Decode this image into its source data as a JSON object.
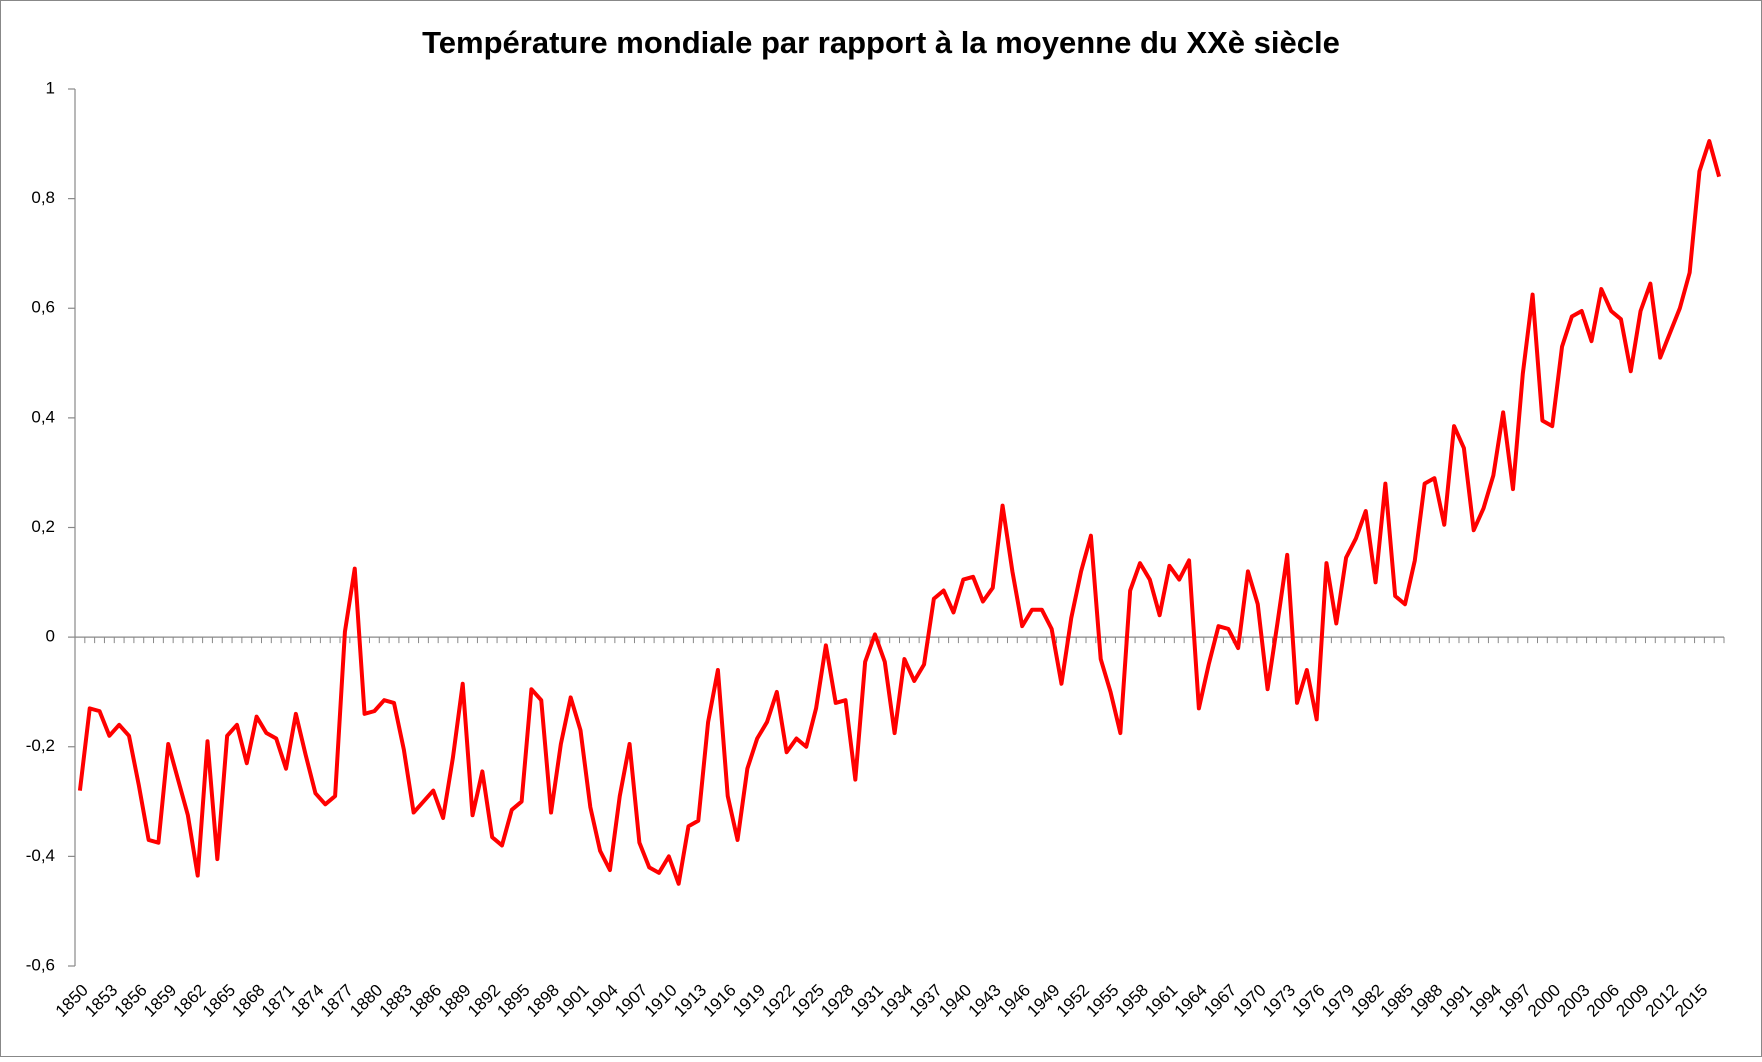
{
  "chart_data": {
    "type": "line",
    "title": "Température mondiale par rapport à la moyenne du XXè siècle",
    "categories": [
      "1850",
      null,
      null,
      "1853",
      null,
      null,
      "1856",
      null,
      null,
      "1859",
      null,
      null,
      "1862",
      null,
      null,
      "1865",
      null,
      null,
      "1868",
      null,
      null,
      "1871",
      null,
      null,
      "1874",
      null,
      null,
      "1877",
      null,
      null,
      "1880",
      null,
      null,
      "1883",
      null,
      null,
      "1886",
      null,
      null,
      "1889",
      null,
      null,
      "1892",
      null,
      null,
      "1895",
      null,
      null,
      "1898",
      null,
      null,
      "1901",
      null,
      null,
      "1904",
      null,
      null,
      "1907",
      null,
      null,
      "1910",
      null,
      null,
      "1913",
      null,
      null,
      "1916",
      null,
      null,
      "1919",
      null,
      null,
      "1922",
      null,
      null,
      "1925",
      null,
      null,
      "1928",
      null,
      null,
      "1931",
      null,
      null,
      "1934",
      null,
      null,
      "1937",
      null,
      null,
      "1940",
      null,
      null,
      "1943",
      null,
      null,
      "1946",
      null,
      null,
      "1949",
      null,
      null,
      "1952",
      null,
      null,
      "1955",
      null,
      null,
      "1958",
      null,
      null,
      "1961",
      null,
      null,
      "1964",
      null,
      null,
      "1967",
      null,
      null,
      "1970",
      null,
      null,
      "1973",
      null,
      null,
      "1976",
      null,
      null,
      "1979",
      null,
      null,
      "1982",
      null,
      null,
      "1985",
      null,
      null,
      "1988",
      null,
      null,
      "1991",
      null,
      null,
      "1994",
      null,
      null,
      "1997",
      null,
      null,
      "2000",
      null,
      null,
      "2003",
      null,
      null,
      "2006",
      null,
      null,
      "2009",
      null,
      null,
      "2012",
      null,
      null,
      "2015",
      null,
      null
    ],
    "values": [
      -0.28,
      -0.13,
      -0.135,
      -0.18,
      -0.16,
      -0.18,
      -0.27,
      -0.37,
      -0.375,
      -0.195,
      -0.26,
      -0.325,
      -0.435,
      -0.19,
      -0.405,
      -0.18,
      -0.16,
      -0.23,
      -0.145,
      -0.175,
      -0.185,
      -0.24,
      -0.14,
      -0.215,
      -0.285,
      -0.305,
      -0.29,
      0.01,
      0.125,
      -0.14,
      -0.135,
      -0.115,
      -0.12,
      -0.205,
      -0.32,
      -0.3,
      -0.28,
      -0.33,
      -0.22,
      -0.085,
      -0.325,
      -0.245,
      -0.365,
      -0.38,
      -0.315,
      -0.3,
      -0.095,
      -0.115,
      -0.32,
      -0.195,
      -0.11,
      -0.17,
      -0.31,
      -0.39,
      -0.425,
      -0.29,
      -0.195,
      -0.375,
      -0.42,
      -0.43,
      -0.4,
      -0.45,
      -0.345,
      -0.335,
      -0.155,
      -0.06,
      -0.29,
      -0.37,
      -0.24,
      -0.185,
      -0.155,
      -0.1,
      -0.21,
      -0.185,
      -0.2,
      -0.13,
      -0.015,
      -0.12,
      -0.115,
      -0.26,
      -0.045,
      0.005,
      -0.045,
      -0.175,
      -0.04,
      -0.08,
      -0.05,
      0.07,
      0.085,
      0.045,
      0.105,
      0.11,
      0.065,
      0.09,
      0.24,
      0.12,
      0.02,
      0.05,
      0.05,
      0.015,
      -0.085,
      0.035,
      0.12,
      0.185,
      -0.04,
      -0.1,
      -0.175,
      0.085,
      0.135,
      0.105,
      0.04,
      0.13,
      0.105,
      0.14,
      -0.13,
      -0.05,
      0.02,
      0.015,
      -0.02,
      0.12,
      0.06,
      -0.095,
      0.025,
      0.15,
      -0.12,
      -0.06,
      -0.15,
      0.135,
      0.025,
      0.145,
      0.18,
      0.23,
      0.1,
      0.28,
      0.075,
      0.06,
      0.14,
      0.28,
      0.29,
      0.205,
      0.385,
      0.345,
      0.195,
      0.235,
      0.295,
      0.41,
      0.27,
      0.48,
      0.625,
      0.395,
      0.385,
      0.53,
      0.585,
      0.595,
      0.54,
      0.635,
      0.595,
      0.58,
      0.485,
      0.595,
      0.645,
      0.51,
      0.555,
      0.6,
      0.665,
      0.85,
      0.905,
      0.84
    ],
    "color": "#ff0000",
    "ylim": [
      -0.6,
      1
    ],
    "yticks": [
      {
        "value": -0.6,
        "label": "-0,6"
      },
      {
        "value": -0.4,
        "label": "-0,4"
      },
      {
        "value": -0.2,
        "label": "-0,2"
      },
      0,
      {
        "value": 0.2,
        "label": "0,2"
      },
      {
        "value": 0.4,
        "label": "0,4"
      },
      {
        "value": 0.6,
        "label": "0,6"
      },
      {
        "value": 0.8,
        "label": "0,8"
      },
      1
    ],
    "grid": false
  }
}
